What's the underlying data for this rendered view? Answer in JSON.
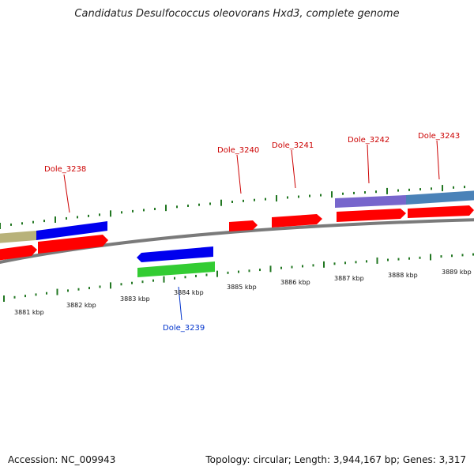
{
  "title": "Candidatus Desulfococcus oleovorans Hxd3, complete genome",
  "footer": {
    "accession": "Accession: NC_009943",
    "summary": "Topology: circular; Length: 3,944,167 bp; Genes: 3,317"
  },
  "colors": {
    "forward_cds": "#ff0000",
    "reverse_label": "#0033cc",
    "forward_label": "#cc0000",
    "backbone": "#808080",
    "gc_tick": "#227722",
    "blue_feature": "#0000ee",
    "green_feature": "#33cc33",
    "olive_feature": "#b8b27a",
    "purple_feature": "#7766cc",
    "steel_feature": "#4a82b8"
  },
  "axis": {
    "kbp_labels": [
      "3881 kbp",
      "3882 kbp",
      "3883 kbp",
      "3884 kbp",
      "3885 kbp",
      "3886 kbp",
      "3887 kbp",
      "3888 kbp",
      "3889 kbp"
    ]
  },
  "genes": {
    "forward": [
      "Dole_3238",
      "Dole_3240",
      "Dole_3241",
      "Dole_3242",
      "Dole_3243"
    ],
    "reverse": [
      "Dole_3239"
    ]
  }
}
